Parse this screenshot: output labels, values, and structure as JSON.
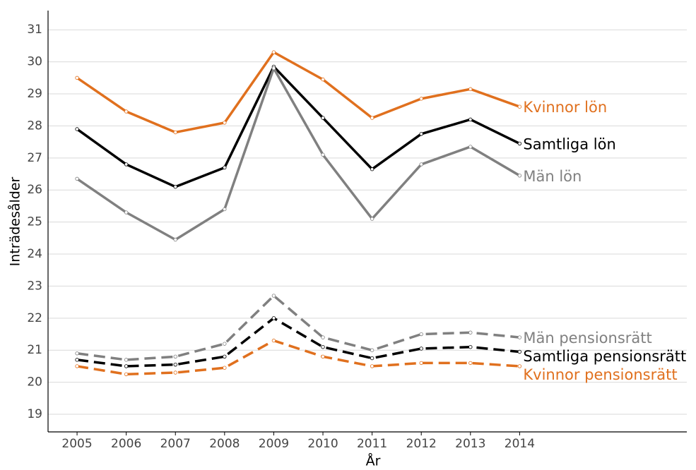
{
  "chart_data": {
    "type": "line",
    "xlabel": "År",
    "ylabel": "Inträdesålder",
    "x": [
      2005,
      2006,
      2007,
      2008,
      2009,
      2010,
      2011,
      2012,
      2013,
      2014
    ],
    "xlim": [
      2004.41,
      2017.4
    ],
    "xticks": [
      2005,
      2006,
      2007,
      2008,
      2009,
      2010,
      2011,
      2012,
      2013,
      2014
    ],
    "ylim": [
      18.45,
      31.6
    ],
    "yticks": [
      19,
      20,
      21,
      22,
      23,
      24,
      25,
      26,
      27,
      28,
      29,
      30,
      31
    ],
    "grid": true,
    "legend": "line-end",
    "series": [
      {
        "name": "Kvinnor lön",
        "color": "#e0701e",
        "line_style": "solid",
        "values": [
          29.5,
          28.45,
          27.8,
          28.1,
          30.3,
          29.45,
          28.25,
          28.85,
          29.15,
          28.6
        ]
      },
      {
        "name": "Samtliga lön",
        "color": "#000000",
        "line_style": "solid",
        "values": [
          27.9,
          26.8,
          26.1,
          26.7,
          29.85,
          28.25,
          26.65,
          27.75,
          28.2,
          27.45
        ]
      },
      {
        "name": "Män lön",
        "color": "#808080",
        "line_style": "solid",
        "values": [
          26.35,
          25.3,
          24.45,
          25.4,
          29.8,
          27.1,
          25.1,
          26.8,
          27.35,
          26.45
        ]
      },
      {
        "name": "Män pensionsrätt",
        "color": "#808080",
        "line_style": "dashed",
        "values": [
          20.9,
          20.7,
          20.8,
          21.2,
          22.7,
          21.4,
          21.0,
          21.5,
          21.55,
          21.4
        ]
      },
      {
        "name": "Samtliga pensionsrätt",
        "color": "#000000",
        "line_style": "dashed",
        "values": [
          20.7,
          20.5,
          20.55,
          20.8,
          22.0,
          21.1,
          20.75,
          21.05,
          21.1,
          20.95
        ]
      },
      {
        "name": "Kvinnor pensionsrätt",
        "color": "#e0701e",
        "line_style": "dashed",
        "values": [
          20.5,
          20.25,
          20.3,
          20.45,
          21.3,
          20.8,
          20.5,
          20.6,
          20.6,
          20.5
        ]
      }
    ]
  }
}
